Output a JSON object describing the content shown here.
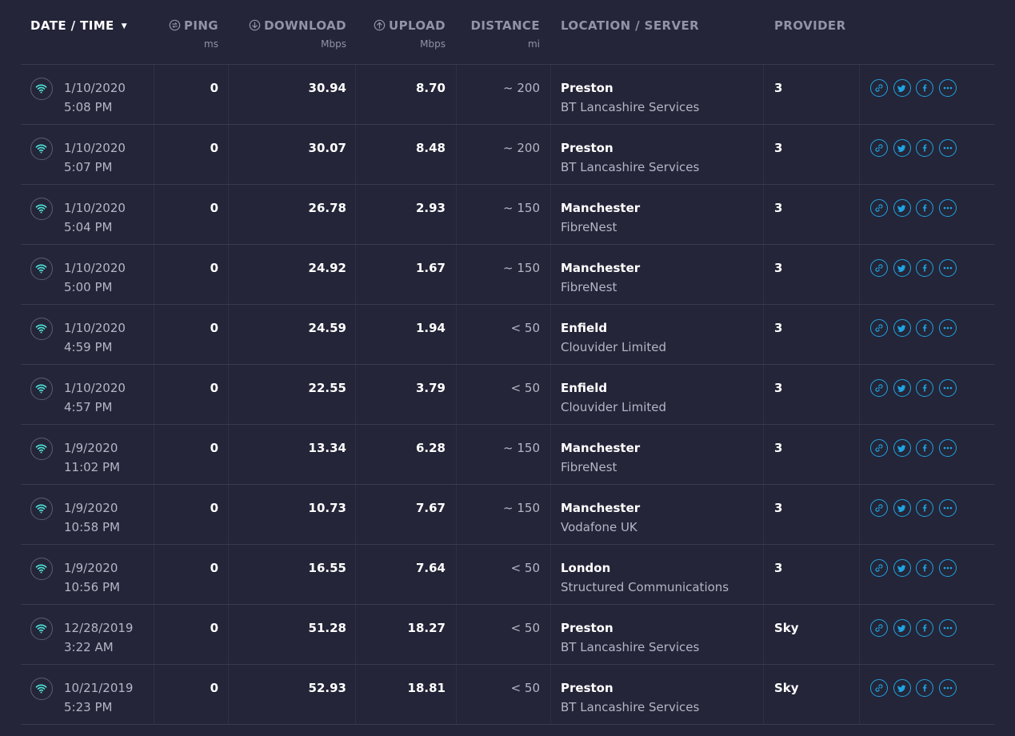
{
  "header": {
    "date_label": "DATE / TIME",
    "ping_label": "PING",
    "ping_unit": "ms",
    "download_label": "DOWNLOAD",
    "download_unit": "Mbps",
    "upload_label": "UPLOAD",
    "upload_unit": "Mbps",
    "distance_label": "DISTANCE",
    "distance_unit": "mi",
    "location_label": "LOCATION / SERVER",
    "provider_label": "PROVIDER"
  },
  "colors": {
    "background": "#242538",
    "accent_blue": "#1fa3e0",
    "wifi_teal": "#4fe3d9",
    "muted_text": "#9193a8"
  },
  "icons": [
    "ping-icon",
    "download-icon",
    "upload-icon",
    "wifi-icon",
    "link-icon",
    "twitter-icon",
    "facebook-icon",
    "more-icon",
    "sort-caret-icon"
  ],
  "rows": [
    {
      "date": "1/10/2020",
      "time": "5:08 PM",
      "ping": "0",
      "download": "30.94",
      "upload": "8.70",
      "distance": "~ 200",
      "city": "Preston",
      "server": "BT Lancashire Services",
      "provider": "3"
    },
    {
      "date": "1/10/2020",
      "time": "5:07 PM",
      "ping": "0",
      "download": "30.07",
      "upload": "8.48",
      "distance": "~ 200",
      "city": "Preston",
      "server": "BT Lancashire Services",
      "provider": "3"
    },
    {
      "date": "1/10/2020",
      "time": "5:04 PM",
      "ping": "0",
      "download": "26.78",
      "upload": "2.93",
      "distance": "~ 150",
      "city": "Manchester",
      "server": "FibreNest",
      "provider": "3"
    },
    {
      "date": "1/10/2020",
      "time": "5:00 PM",
      "ping": "0",
      "download": "24.92",
      "upload": "1.67",
      "distance": "~ 150",
      "city": "Manchester",
      "server": "FibreNest",
      "provider": "3"
    },
    {
      "date": "1/10/2020",
      "time": "4:59 PM",
      "ping": "0",
      "download": "24.59",
      "upload": "1.94",
      "distance": "< 50",
      "city": "Enfield",
      "server": "Clouvider Limited",
      "provider": "3"
    },
    {
      "date": "1/10/2020",
      "time": "4:57 PM",
      "ping": "0",
      "download": "22.55",
      "upload": "3.79",
      "distance": "< 50",
      "city": "Enfield",
      "server": "Clouvider Limited",
      "provider": "3"
    },
    {
      "date": "1/9/2020",
      "time": "11:02 PM",
      "ping": "0",
      "download": "13.34",
      "upload": "6.28",
      "distance": "~ 150",
      "city": "Manchester",
      "server": "FibreNest",
      "provider": "3"
    },
    {
      "date": "1/9/2020",
      "time": "10:58 PM",
      "ping": "0",
      "download": "10.73",
      "upload": "7.67",
      "distance": "~ 150",
      "city": "Manchester",
      "server": "Vodafone UK",
      "provider": "3"
    },
    {
      "date": "1/9/2020",
      "time": "10:56 PM",
      "ping": "0",
      "download": "16.55",
      "upload": "7.64",
      "distance": "< 50",
      "city": "London",
      "server": "Structured Communications",
      "provider": "3"
    },
    {
      "date": "12/28/2019",
      "time": "3:22 AM",
      "ping": "0",
      "download": "51.28",
      "upload": "18.27",
      "distance": "< 50",
      "city": "Preston",
      "server": "BT Lancashire Services",
      "provider": "Sky"
    },
    {
      "date": "10/21/2019",
      "time": "5:23 PM",
      "ping": "0",
      "download": "52.93",
      "upload": "18.81",
      "distance": "< 50",
      "city": "Preston",
      "server": "BT Lancashire Services",
      "provider": "Sky"
    }
  ]
}
